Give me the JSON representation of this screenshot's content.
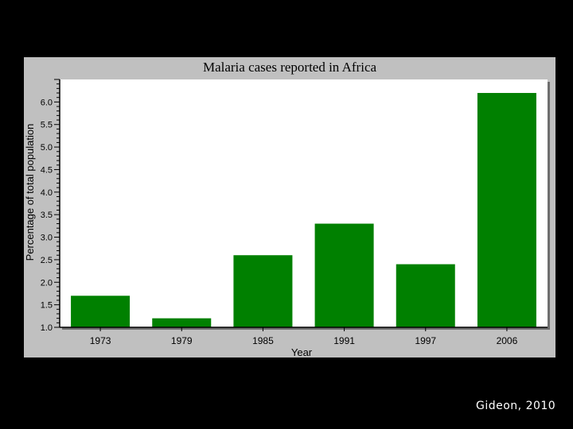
{
  "credit": "Gideon, 2010",
  "colors": {
    "background": "#000000",
    "panel": "#c0c0c0",
    "plot": "#ffffff",
    "bar": "#008000"
  },
  "chart_data": {
    "type": "bar",
    "title": "Malaria cases reported in Africa",
    "xlabel": "Year",
    "ylabel": "Percentage of total population",
    "categories": [
      "1973",
      "1979",
      "1985",
      "1991",
      "1997",
      "2006"
    ],
    "values": [
      1.7,
      1.2,
      2.6,
      3.3,
      2.4,
      6.2
    ],
    "ylim": [
      1.0,
      6.5
    ],
    "yticks": [
      "1.0",
      "1.5",
      "2.0",
      "2.5",
      "3.0",
      "3.5",
      "4.0",
      "4.5",
      "5.0",
      "5.5",
      "6.0"
    ],
    "grid": false,
    "legend": "none"
  }
}
